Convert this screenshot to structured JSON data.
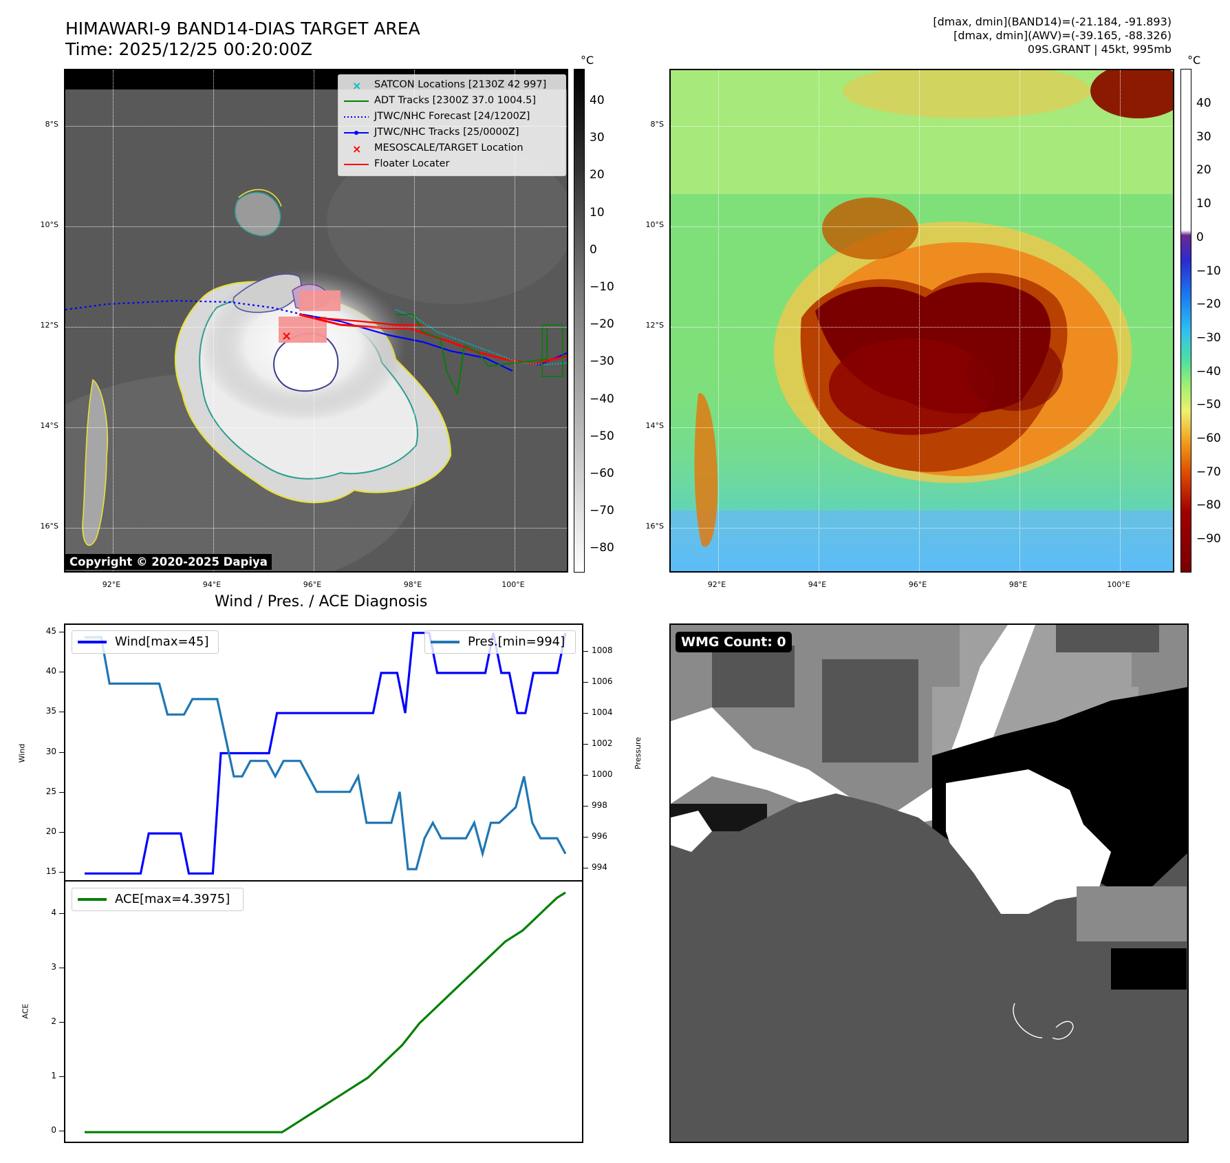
{
  "header": {
    "title_line1": "HIMAWARI-9 BAND14-DIAS TARGET AREA",
    "title_line2": "Time: 2025/12/25 00:20:00Z",
    "info_line1": "[dmax, dmin](BAND14)=(-21.184, -91.893)",
    "info_line2": "[dmax, dmin](AWV)=(-39.165, -88.326)",
    "info_line3": "09S.GRANT | 45kt, 995mb"
  },
  "map": {
    "lat_labels": [
      "8°S",
      "10°S",
      "12°S",
      "14°S",
      "16°S"
    ],
    "lon_labels": [
      "92°E",
      "94°E",
      "96°E",
      "98°E",
      "100°E"
    ]
  },
  "ir_colorbar": {
    "unit": "°C",
    "ticks": [
      "40",
      "30",
      "20",
      "10",
      "0",
      "−10",
      "−20",
      "−30",
      "−40",
      "−50",
      "−60",
      "−70",
      "−80"
    ]
  },
  "cc_colorbar": {
    "unit": "°C",
    "ticks": [
      "40",
      "30",
      "20",
      "10",
      "0",
      "−10",
      "−20",
      "−30",
      "−40",
      "−50",
      "−60",
      "−70",
      "−80",
      "−90"
    ]
  },
  "legend": {
    "items": [
      {
        "label": "SATCON Locations [2130Z 42 997]",
        "color": "#00bfbf",
        "style": "x"
      },
      {
        "label": "ADT Tracks [2300Z 37.0 1004.5]",
        "color": "#008000",
        "style": "line"
      },
      {
        "label": "JTWC/NHC Forecast [24/1200Z]",
        "color": "#0000ff",
        "style": "dotted"
      },
      {
        "label": "JTWC/NHC Tracks [25/0000Z]",
        "color": "#0000ff",
        "style": "line-dot"
      },
      {
        "label": "MESOSCALE/TARGET Location",
        "color": "#ff0000",
        "style": "x"
      },
      {
        "label": "Floater Locater",
        "color": "#ff0000",
        "style": "line"
      }
    ]
  },
  "copyright": "Copyright © 2020-2025 Dapiya",
  "diagnosis_title": "Wind / Pres. / ACE Diagnosis",
  "wmg": {
    "label": "WMG Count: 0"
  },
  "chart_data": [
    {
      "type": "line",
      "title": "Wind / Pres. / ACE Diagnosis",
      "ylabel": "Wind",
      "ylim": [
        14,
        46
      ],
      "yticks": [
        15,
        20,
        25,
        30,
        35,
        40,
        45
      ],
      "series": [
        {
          "name": "Wind[max=45]",
          "axis": "left",
          "color": "#0000ff",
          "values": [
            15,
            15,
            15,
            15,
            15,
            15,
            15,
            15,
            20,
            20,
            20,
            20,
            20,
            15,
            15,
            15,
            15,
            30,
            30,
            30,
            30,
            30,
            30,
            30,
            35,
            35,
            35,
            35,
            35,
            35,
            35,
            35,
            35,
            35,
            35,
            35,
            35,
            40,
            40,
            40,
            35,
            45,
            45,
            45,
            40,
            40,
            40,
            40,
            40,
            40,
            40,
            45,
            40,
            40,
            35,
            35,
            40,
            40,
            40,
            40,
            45
          ]
        }
      ]
    },
    {
      "type": "line",
      "ylabel": "Pressure",
      "ylim": [
        993.2,
        1009.8
      ],
      "yticks": [
        994,
        996,
        998,
        1000,
        1002,
        1004,
        1006,
        1008
      ],
      "series": [
        {
          "name": "Pres.[min=994]",
          "axis": "right",
          "color": "#1f77b4",
          "values": [
            1009,
            1009,
            1009,
            1006,
            1006,
            1006,
            1006,
            1006,
            1006,
            1006,
            1004,
            1004,
            1004,
            1005,
            1005,
            1005,
            1005,
            1002.5,
            1000,
            1000,
            1001,
            1001,
            1001,
            1000,
            1001,
            1001,
            1001,
            1000,
            999,
            999,
            999,
            999,
            999,
            1000,
            997,
            997,
            997,
            997,
            999,
            994,
            994,
            996,
            997,
            996,
            996,
            996,
            996,
            997,
            995,
            997,
            997,
            997.5,
            998,
            1000,
            997,
            996,
            996,
            996,
            995
          ]
        }
      ]
    },
    {
      "type": "line",
      "ylabel": "ACE",
      "ylim": [
        -0.2,
        4.6
      ],
      "yticks": [
        0,
        1,
        2,
        3,
        4
      ],
      "series": [
        {
          "name": "ACE[max=4.3975]",
          "color": "#008000",
          "values": [
            0,
            0,
            0,
            0,
            0,
            0,
            0,
            0,
            0,
            0,
            0,
            0,
            0,
            0,
            0,
            0,
            0,
            0,
            0,
            0,
            0,
            0,
            0,
            0,
            0.1,
            0.2,
            0.3,
            0.4,
            0.5,
            0.6,
            0.7,
            0.8,
            0.9,
            1.0,
            1.15,
            1.3,
            1.45,
            1.6,
            1.8,
            2.0,
            2.15,
            2.3,
            2.45,
            2.6,
            2.75,
            2.9,
            3.05,
            3.2,
            3.35,
            3.5,
            3.6,
            3.7,
            3.85,
            4.0,
            4.15,
            4.3,
            4.3975
          ]
        }
      ]
    }
  ]
}
